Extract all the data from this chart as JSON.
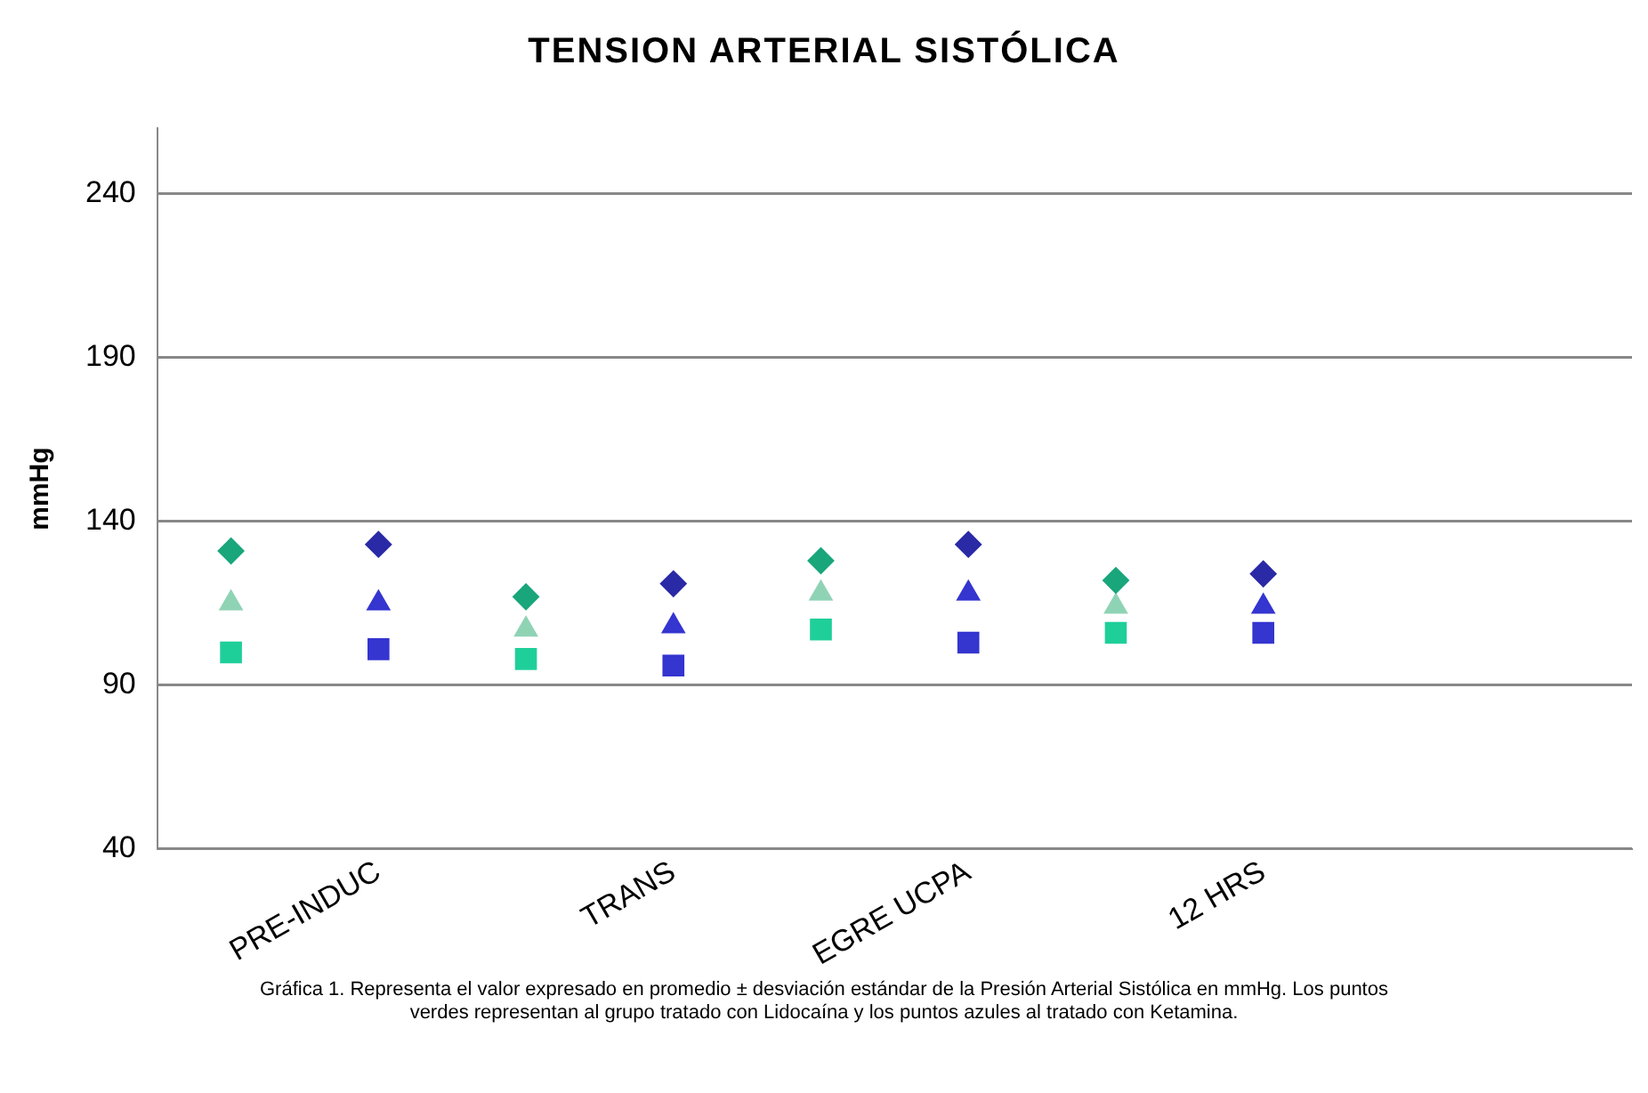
{
  "chart_data": {
    "type": "scatter",
    "title": "TENSION ARTERIAL  SISTÓLICA",
    "ylabel": "mmHg",
    "categories": [
      null,
      "PRE-INDUC",
      null,
      "TRANS",
      null,
      "EGRE UCPA",
      null,
      "12 HRS",
      null,
      null
    ],
    "series": [
      {
        "color": "#19a67b",
        "marker": "diamond",
        "values": [
          131,
          null,
          117,
          null,
          128,
          null,
          122,
          null,
          null,
          null
        ]
      },
      {
        "color": "#8fd3b5",
        "marker": "triangle",
        "values": [
          115,
          null,
          107,
          null,
          118,
          null,
          114,
          null,
          null,
          null
        ]
      },
      {
        "color": "#1fcf9a",
        "marker": "square",
        "values": [
          100,
          null,
          98,
          null,
          107,
          null,
          106,
          null,
          null,
          null
        ]
      },
      {
        "color": "#2a2aa6",
        "marker": "diamond",
        "values": [
          null,
          133,
          null,
          121,
          null,
          133,
          null,
          124,
          null,
          null
        ]
      },
      {
        "color": "#3535d0",
        "marker": "triangle",
        "values": [
          null,
          115,
          null,
          108,
          null,
          118,
          null,
          114,
          null,
          null
        ]
      },
      {
        "color": "#3535d0",
        "marker": "square",
        "values": [
          null,
          101,
          null,
          96,
          null,
          103,
          null,
          106,
          null,
          null
        ]
      }
    ],
    "ylim": [
      40,
      260
    ],
    "yticks": [
      40,
      90,
      140,
      190,
      240
    ],
    "grid": "y",
    "legend": false,
    "annotations": [
      "Gráfica 1. Representa  el valor expresado   en promedio ± desviación  estándar  de la Presión Arterial Sistólica en  mmHg.  Los puntos verdes   representan  al grupo tratado  con Lidocaína  y los puntos  azules al tratado  con Ketamina."
    ]
  }
}
